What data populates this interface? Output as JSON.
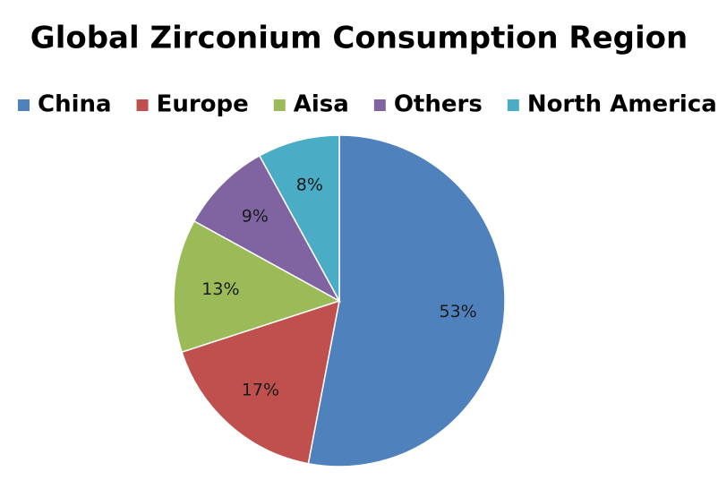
{
  "chart_data": {
    "type": "pie",
    "title": "Global Zirconium Consumption Region",
    "categories": [
      "China",
      "Europe",
      "Aisa",
      "Others",
      "North America"
    ],
    "values": [
      53,
      17,
      13,
      9,
      8
    ],
    "value_labels": [
      "53%",
      "17%",
      "13%",
      "9%",
      "8%"
    ],
    "colors": [
      "#4f81bd",
      "#c0504d",
      "#9bbb59",
      "#8064a2",
      "#4bacc6"
    ],
    "legend": "top"
  }
}
